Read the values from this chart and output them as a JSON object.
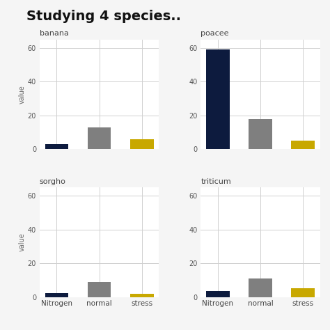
{
  "title": "Studying 4 species..",
  "title_fontsize": 14,
  "title_fontweight": "bold",
  "ylabel": "value",
  "categories": [
    "Nitrogen",
    "normal",
    "stress"
  ],
  "subplots": [
    {
      "name": "banana",
      "values": [
        3,
        13,
        6
      ]
    },
    {
      "name": "poacee",
      "values": [
        59,
        18,
        5
      ]
    },
    {
      "name": "sorgho",
      "values": [
        2.5,
        9,
        2
      ]
    },
    {
      "name": "triticum",
      "values": [
        3.5,
        11,
        5
      ]
    }
  ],
  "bar_colors": [
    "#0d1b3e",
    "#7f7f7f",
    "#c8a800"
  ],
  "background_color": "#f5f5f5",
  "plot_bg_color": "#ffffff",
  "grid_color": "#d0d0d0",
  "ylim": [
    0,
    65
  ],
  "yticks": [
    0,
    20,
    40,
    60
  ],
  "bar_width": 0.55
}
